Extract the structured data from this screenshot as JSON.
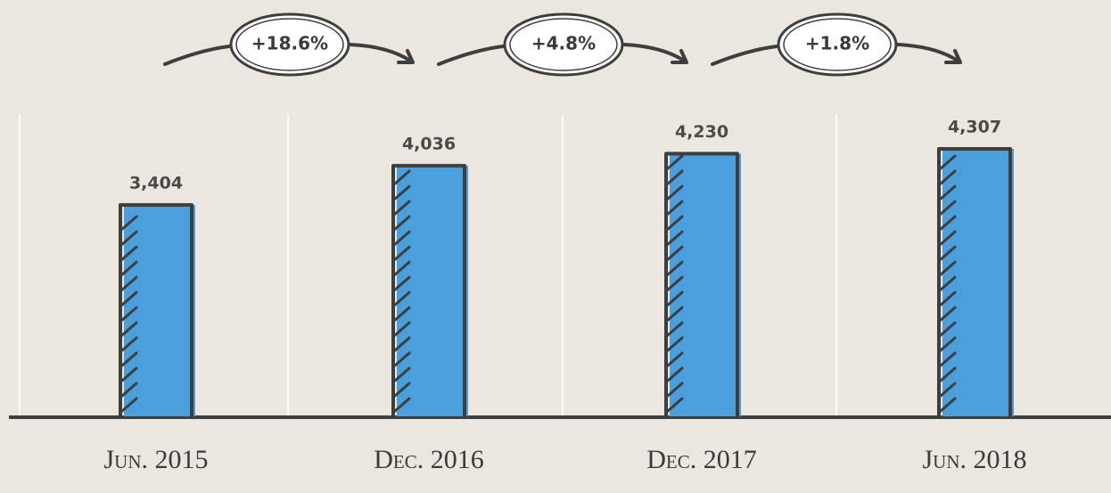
{
  "chart_data": {
    "type": "bar",
    "categories": [
      "Jun. 2015",
      "Dec. 2016",
      "Dec. 2017",
      "Jun. 2018"
    ],
    "values": [
      3404,
      4036,
      4230,
      4307
    ],
    "value_labels": [
      "3,404",
      "4,036",
      "4,230",
      "4,307"
    ],
    "color": "#4a9fdc",
    "annotations": [
      "+18.6%",
      "+4.8%",
      "+1.8%"
    ]
  }
}
